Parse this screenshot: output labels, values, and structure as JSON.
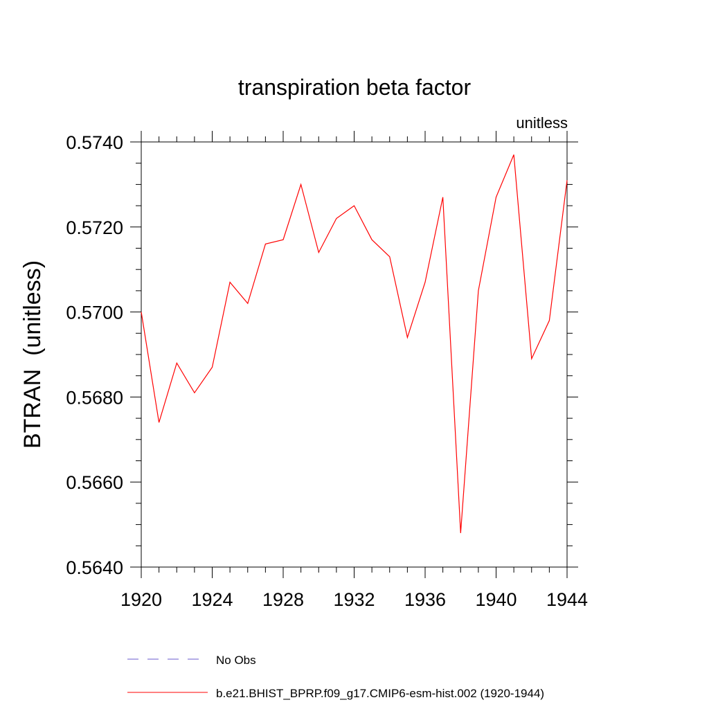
{
  "chart_data": {
    "type": "line",
    "title": "transpiration beta factor",
    "units_label": "unitless",
    "ylabel": "BTRAN  (unitless)",
    "xlabel": "",
    "xlim": [
      1920,
      1944
    ],
    "ylim": [
      0.564,
      0.574
    ],
    "x_ticks": [
      1920,
      1924,
      1928,
      1932,
      1936,
      1940,
      1944
    ],
    "x_tick_labels": [
      "1920",
      "1924",
      "1928",
      "1932",
      "1936",
      "1940",
      "1944"
    ],
    "y_ticks": [
      0.564,
      0.566,
      0.568,
      0.57,
      0.572,
      0.574
    ],
    "y_tick_labels": [
      "0.5640",
      "0.5660",
      "0.5680",
      "0.5700",
      "0.5720",
      "0.5740"
    ],
    "grid": false,
    "legend_position": "bottom",
    "series": [
      {
        "name": "b.e21.BHIST_BPRP.f09_g17.CMIP6-esm-hist.002 (1920-1944)",
        "color": "#ff0000",
        "style": "solid",
        "x": [
          1920,
          1921,
          1922,
          1923,
          1924,
          1925,
          1926,
          1927,
          1928,
          1929,
          1930,
          1931,
          1932,
          1933,
          1934,
          1935,
          1936,
          1937,
          1938,
          1939,
          1940,
          1941,
          1942,
          1943,
          1944
        ],
        "values": [
          0.57,
          0.5674,
          0.5688,
          0.5681,
          0.5687,
          0.5707,
          0.5702,
          0.5716,
          0.5717,
          0.573,
          0.5714,
          0.5722,
          0.5725,
          0.5717,
          0.5713,
          0.5694,
          0.5707,
          0.5727,
          0.5648,
          0.5705,
          0.5727,
          0.5737,
          0.5689,
          0.5698,
          0.5731
        ]
      }
    ],
    "legend": [
      {
        "label": "No Obs",
        "color": "#6a5acd",
        "style": "dashed"
      },
      {
        "label": "b.e21.BHIST_BPRP.f09_g17.CMIP6-esm-hist.002 (1920-1944)",
        "color": "#ff0000",
        "style": "solid"
      }
    ]
  }
}
